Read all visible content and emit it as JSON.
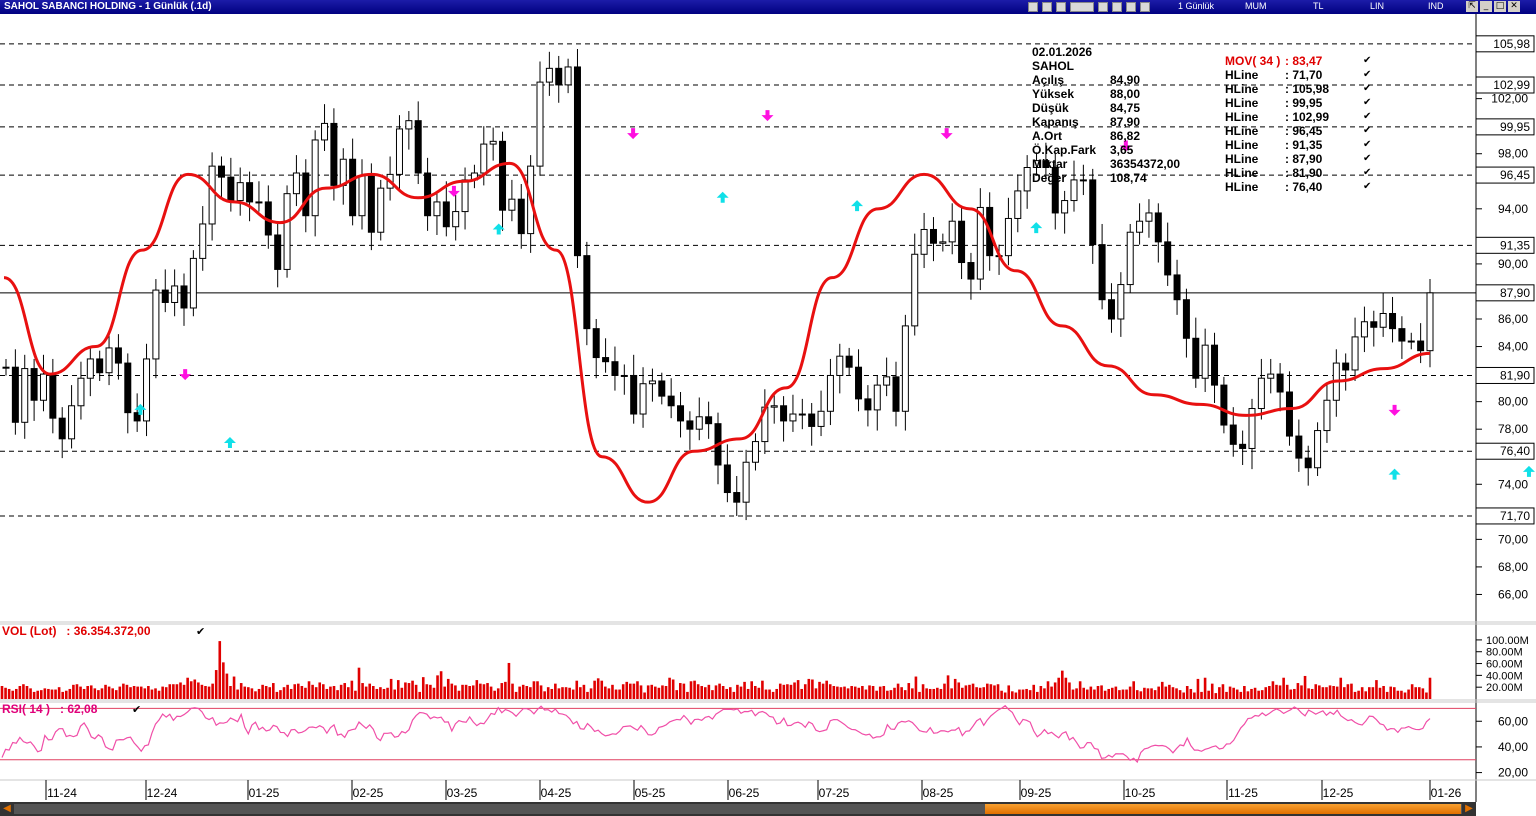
{
  "window": {
    "title": "SAHOL SABANCI HOLDING - 1 Günlük (.1d)",
    "toolbar": [
      "1 Günlük",
      "MUM",
      "TL",
      "LIN",
      "IND"
    ]
  },
  "info": {
    "date": "02.01.2026",
    "symbol": "SAHOL",
    "rows": [
      {
        "label": "Açılış",
        "value": "84,90"
      },
      {
        "label": "Yüksek",
        "value": "88,00"
      },
      {
        "label": "Düşük",
        "value": "84,75"
      },
      {
        "label": "Kapanış",
        "value": "87,90"
      },
      {
        "label": "A.Ort",
        "value": "86,82"
      },
      {
        "label": "Ö.Kap.Fark",
        "value": "3,65"
      },
      {
        "label": "Miktar",
        "value": "36354372,00"
      },
      {
        "label": "Değer",
        "value": "108,74"
      }
    ]
  },
  "indicators": [
    {
      "name": "MOV( 34 )",
      "value": ": 83,47"
    },
    {
      "name": "HLine",
      "value": ": 71,70"
    },
    {
      "name": "HLine",
      "value": ": 105,98"
    },
    {
      "name": "HLine",
      "value": ": 99,95"
    },
    {
      "name": "HLine",
      "value": ": 102,99"
    },
    {
      "name": "HLine",
      "value": ": 96,45"
    },
    {
      "name": "HLine",
      "value": ": 91,35"
    },
    {
      "name": "HLine",
      "value": ": 87,90"
    },
    {
      "name": "HLine",
      "value": ": 81,90"
    },
    {
      "name": "HLine",
      "value": ": 76,40"
    }
  ],
  "vol_label": "VOL (Lot)   : 36.354.372,00",
  "rsi_label": "RSI( 14 )   : 62,08",
  "chart_data": [
    {
      "type": "candlestick",
      "ylim": [
        64,
        108
      ],
      "price_ticks": [
        "66,00",
        "68,00",
        "70,00",
        "72,00",
        "74,00",
        "76,00",
        "78,00",
        "80,00",
        "82,00",
        "84,00",
        "86,00",
        "88,00",
        "90,00",
        "92,00",
        "94,00",
        "96,00",
        "98,00",
        "100,00",
        "102,00"
      ],
      "hlines": [
        {
          "value": 105.98,
          "label": "105,98"
        },
        {
          "value": 102.99,
          "label": "102,99"
        },
        {
          "value": 99.95,
          "label": "99,95"
        },
        {
          "value": 96.45,
          "label": "96,45"
        },
        {
          "value": 91.35,
          "label": "91,35"
        },
        {
          "value": 87.9,
          "label": "87,90"
        },
        {
          "value": 81.9,
          "label": "81,90"
        },
        {
          "value": 76.4,
          "label": "76,40"
        },
        {
          "value": 71.7,
          "label": "71,70"
        }
      ],
      "x_labels": [
        "11-24",
        "12-24",
        "01-25",
        "02-25",
        "03-25",
        "04-25",
        "05-25",
        "06-25",
        "07-25",
        "08-25",
        "09-25",
        "10-25",
        "11-25",
        "12-25",
        "01-26"
      ],
      "closes": [
        82.5,
        78.5,
        82.4,
        80.1,
        82,
        78.8,
        77.3,
        79.7,
        81.7,
        83.1,
        82.1,
        83.9,
        82.8,
        79.2,
        78.6,
        83.1,
        88.1,
        87.2,
        88.4,
        86.8,
        90.4,
        92.9,
        97.1,
        96.3,
        94.6,
        95.9,
        94.5,
        94.5,
        92.1,
        89.6,
        95.1,
        96.6,
        93.5,
        99,
        100.2,
        95.7,
        97.6,
        93.5,
        96.4,
        92.3,
        95.5,
        96.5,
        99.8,
        100.4,
        96.6,
        93.5,
        94.5,
        92.7,
        93.8,
        96.1,
        96.6,
        98.7,
        98.9,
        93.9,
        94.7,
        92.2,
        97.1,
        103.2,
        104.2,
        103,
        104.3,
        90.6,
        85.3,
        83.2,
        82.9,
        81.9,
        81.9,
        79.1,
        81.3,
        81.5,
        80.4,
        79.7,
        78.6,
        78,
        78.9,
        78.4,
        75.4,
        73.4,
        72.7,
        75.6,
        77.1,
        79.6,
        79.7,
        78.6,
        79.1,
        79.1,
        78.2,
        79.3,
        81.9,
        83.3,
        82.5,
        80.2,
        79.4,
        81.2,
        81.8,
        79.3,
        85.5,
        90.7,
        92.5,
        91.5,
        91.6,
        93.1,
        90.1,
        88.9,
        94.1,
        90.6,
        90.6,
        93.3,
        95.3,
        97,
        97.5,
        97,
        93.7,
        94.6,
        96.1,
        96.1,
        91.4,
        87.4,
        86,
        88.5,
        92.3,
        93.1,
        93.7,
        91.6,
        89.2,
        87.4,
        84.6,
        81.7,
        84.1,
        81.2,
        78.3,
        76.9,
        76.6,
        79.5,
        81.7,
        82,
        80.7,
        77.5,
        75.9,
        75.2,
        77.9,
        80.1,
        82.8,
        82.3,
        84.7,
        85.8,
        85.4,
        86.4,
        85.3,
        84.4,
        84.4,
        83.7,
        87.9
      ],
      "mov34": [
        89,
        82,
        84,
        91,
        96.5,
        94.5,
        93,
        95.5,
        96.5,
        94.8,
        96,
        97.3,
        91,
        76,
        72.7,
        76.4,
        77.3,
        81,
        89,
        94,
        96.5,
        94,
        89.5,
        85.5,
        82.6,
        80.5,
        79.8,
        79,
        79.5,
        81.5,
        82.4,
        83.5
      ],
      "markers": [
        {
          "dir": "up",
          "i": 3,
          "v": 79.4
        },
        {
          "dir": "down",
          "i": 4,
          "v": 82
        },
        {
          "dir": "up",
          "i": 5,
          "v": 77
        },
        {
          "dir": "down",
          "i": 10,
          "v": 95.3
        },
        {
          "dir": "up",
          "i": 11,
          "v": 92.5
        },
        {
          "dir": "down",
          "i": 14,
          "v": 99.5
        },
        {
          "dir": "up",
          "i": 16,
          "v": 94.8
        },
        {
          "dir": "down",
          "i": 17,
          "v": 100.8
        },
        {
          "dir": "up",
          "i": 19,
          "v": 94.2
        },
        {
          "dir": "down",
          "i": 21,
          "v": 99.5
        },
        {
          "dir": "up",
          "i": 23,
          "v": 92.6
        },
        {
          "dir": "down",
          "i": 25,
          "v": 98.6
        },
        {
          "dir": "up",
          "i": 31,
          "v": 74.7
        },
        {
          "dir": "down",
          "i": 31,
          "v": 79.4
        },
        {
          "dir": "up",
          "i": 34,
          "v": 74.9
        },
        {
          "dir": "down",
          "i": 36,
          "v": 79.4
        },
        {
          "dir": "up",
          "i": 37,
          "v": 76.2
        },
        {
          "dir": "down",
          "i": 39,
          "v": 81.4
        },
        {
          "dir": "up",
          "i": 40,
          "v": 79.3
        },
        {
          "dir": "down",
          "i": 44,
          "v": 92.4
        },
        {
          "dir": "up",
          "i": 45,
          "v": 91.7
        },
        {
          "dir": "down",
          "i": 49,
          "v": 97.9
        },
        {
          "dir": "up",
          "i": 50,
          "v": 96.4
        },
        {
          "dir": "down",
          "i": 51,
          "v": 97.3
        },
        {
          "dir": "up",
          "i": 54,
          "v": 84.3
        },
        {
          "dir": "down",
          "i": 56,
          "v": 92.4
        },
        {
          "dir": "down",
          "i": 63,
          "v": 84.2
        },
        {
          "dir": "up",
          "i": 63,
          "v": 80.4
        },
        {
          "dir": "up",
          "i": 66,
          "v": 77.3
        },
        {
          "dir": "down",
          "i": 71,
          "v": 87.9
        },
        {
          "dir": "up",
          "i": 73,
          "v": 84.2
        }
      ]
    },
    {
      "type": "bar",
      "title": "VOL (Lot)",
      "ylim": [
        0,
        110
      ],
      "y_ticks": [
        "20.00M",
        "40.00M",
        "60.00M",
        "80.00M",
        "100.00M"
      ],
      "values": [
        22,
        19,
        17,
        14,
        17,
        22,
        25,
        22,
        18,
        12,
        14,
        15,
        18,
        17,
        16,
        16,
        20,
        12,
        14,
        17,
        24,
        25,
        21,
        17,
        22,
        23,
        18,
        15,
        18,
        24,
        21,
        18,
        15,
        21,
        26,
        24,
        20,
        22,
        21,
        21,
        18,
        22,
        16,
        18,
        14,
        21,
        20,
        25,
        25,
        25,
        28,
        24,
        36,
        30,
        33,
        28,
        24,
        22,
        21,
        26,
        49,
        98,
        62,
        43,
        22,
        38,
        16,
        27,
        21,
        20,
        18,
        13,
        17,
        24,
        22,
        20,
        27,
        12,
        15,
        20,
        24,
        17,
        25,
        26,
        22,
        19,
        30,
        24,
        20,
        28,
        25,
        17,
        21,
        22,
        15,
        24,
        27,
        20,
        31,
        14,
        53,
        27,
        21,
        26,
        22,
        17,
        20,
        17,
        19,
        34,
        16,
        32,
        19,
        28,
        27,
        31,
        24,
        12,
        37,
        25,
        24,
        19,
        40,
        47,
        21,
        34,
        26,
        23,
        14,
        24,
        24,
        22,
        23,
        32,
        26,
        25,
        27,
        21,
        14,
        18,
        27,
        29,
        61,
        26,
        12,
        21,
        24,
        22,
        20,
        30,
        30,
        23,
        13,
        20,
        17,
        26,
        18,
        20,
        20,
        19,
        16,
        31,
        20,
        24,
        12,
        18,
        31,
        35,
        31,
        21,
        18,
        24,
        16,
        16,
        25,
        29,
        26,
        26,
        30,
        23,
        11,
        23,
        24,
        21,
        19,
        23,
        22,
        36,
        33,
        15,
        27,
        26,
        12,
        30,
        31,
        25,
        22,
        20,
        24,
        15,
        23,
        26,
        22,
        17,
        20,
        12,
        24,
        21,
        29,
        17,
        30,
        22,
        19,
        31,
        16,
        16,
        12,
        17,
        26,
        24,
        25,
        24,
        28,
        32,
        17,
        25,
        34,
        33,
        18,
        29,
        26,
        31,
        25,
        22,
        21,
        20,
        21,
        18,
        22,
        21,
        19,
        22,
        16,
        23,
        22,
        14,
        21,
        22,
        14,
        15,
        19,
        26,
        20,
        15,
        27,
        18,
        38,
        12,
        25,
        18,
        17,
        17,
        19,
        17,
        26,
        40,
        18,
        34,
        28,
        19,
        23,
        24,
        26,
        20,
        19,
        20,
        26,
        25,
        23,
        25,
        14,
        11,
        23,
        13,
        11,
        16,
        16,
        17,
        15,
        24,
        12,
        22,
        18,
        30,
        21,
        28,
        36,
        48,
        36,
        28,
        16,
        18,
        30,
        19,
        16,
        21,
        16,
        22,
        23,
        14,
        17,
        19,
        21,
        15,
        16,
        16,
        21,
        30,
        15,
        13,
        19,
        18,
        18,
        15,
        21,
        29,
        21,
        24,
        20,
        18,
        15,
        11,
        22,
        17,
        11,
        34,
        12,
        36,
        14,
        26,
        10,
        20,
        25,
        12,
        21,
        19,
        16,
        12,
        22,
        13,
        17,
        19,
        14,
        15,
        20,
        22,
        30,
        24,
        23,
        36,
        24,
        16,
        17,
        27,
        23,
        39,
        18,
        17,
        25,
        23,
        20,
        20,
        23,
        22,
        21,
        36,
        20,
        25,
        26,
        12,
        14,
        20,
        13,
        20,
        20,
        32,
        19,
        22,
        12,
        21,
        20,
        14,
        14,
        11,
        16,
        25,
        20,
        20,
        18,
        11,
        36
      ]
    },
    {
      "type": "line",
      "title": "RSI( 14 )",
      "ylim": [
        15,
        75
      ],
      "y_ticks": [
        "20,00",
        "40,00",
        "60,00"
      ],
      "bands": [
        30,
        70
      ],
      "values": [
        31.7,
        38.1,
        37.5,
        43.4,
        42.9,
        47.4,
        44.1,
        43,
        43.9,
        40.5,
        36.2,
        37.3,
        48.9,
        45.5,
        45.7,
        51.7,
        54.2,
        54.2,
        48.1,
        49,
        48,
        49,
        56.2,
        58.7,
        54.2,
        47.8,
        46.4,
        49.4,
        47.4,
        40.1,
        38.5,
        37.6,
        45.3,
        45.7,
        45.6,
        47.1,
        47.6,
        43.1,
        40.1,
        36.6,
        40.9,
        41.6,
        50.8,
        57.8,
        61.1,
        65.6,
        63.2,
        65.4,
        60.7,
        63.9,
        63.7,
        65.2,
        67.3,
        70.1,
        70.5,
        70,
        67.4,
        62.7,
        61.3,
        62.8,
        56.9,
        58.7,
        58.5,
        59.3,
        62.5,
        61.2,
        59.7,
        65.3,
        55.3,
        50.2,
        57,
        59.3,
        53.5,
        55.3,
        52.4,
        53.2,
        56.8,
        55.8,
        51.3,
        51.2,
        48.1,
        53.3,
        53.6,
        50.9,
        51.4,
        52.8,
        55.3,
        55.5,
        54.9,
        56.5,
        55.1,
        50.7,
        55,
        57.2,
        49.2,
        50,
        47.4,
        52.5,
        53.4,
        54,
        59.4,
        56.8,
        54.5,
        57.2,
        53.8,
        47.1,
        44.9,
        50.6,
        50.6,
        51,
        47.6,
        48.2,
        52,
        50.9,
        53.4,
        60.9,
        64.4,
        66.8,
        66.5,
        65.5,
        62,
        63.4,
        62.6,
        63.2,
        59.3,
        59.5,
        52.4,
        58,
        60.5,
        59.6,
        59.2,
        63.4,
        59.4,
        56.6,
        58.5,
        58.1,
        61.8,
        66.1,
        65.3,
        70.6,
        66.6,
        69.1,
        68.1,
        66.5,
        63.9,
        66.9,
        69.8,
        69.8,
        68.6,
        65.8,
        69.2,
        71.7,
        68.8,
        69,
        67.1,
        69.5,
        66,
        65.6,
        64.7,
        62.1,
        58,
        59.8,
        54.2,
        53.8,
        58.2,
        55.6,
        52.1,
        53,
        50.3,
        48.6,
        49.2,
        50.2,
        49.9,
        52.2,
        55.8,
        56.1,
        56.4,
        54.6,
        53,
        56.6,
        53.6,
        49.5,
        49.3,
        50.6,
        55.2,
        55.9,
        57.1,
        59.5,
        60.5,
        61.4,
        61.1,
        64.5,
        61.6,
        57.7,
        61.3,
        61.6,
        60.7,
        63.1,
        63.8,
        61.7,
        65.6,
        67.3,
        69.2,
        69.2,
        69.3,
        68.9,
        69.6,
        66.2,
        67.6,
        67.5,
        68.5,
        64.3,
        66.9,
        67.6,
        66.3,
        63.7,
        63.2,
        57.9,
        58.7,
        62.4,
        56.6,
        56.8,
        58.6,
        59.3,
        58,
        55.3,
        59.5,
        58,
        53,
        51.9,
        52.6,
        53.4,
        60.4,
        61.3,
        61.2,
        59.4,
        57.5,
        55.1,
        53.6,
        53.4,
        51.8,
        50.1,
        49.3,
        49.9,
        46.8,
        47.8,
        47.9,
        49.5,
        57.3,
        53.9,
        53.7,
        58.5,
        59.9,
        59.4,
        60.4,
        59,
        56,
        52.7,
        51.9,
        51.5,
        55,
        50.7,
        51,
        52.6,
        52.5,
        51.7,
        53.1,
        53.1,
        55.1,
        48.8,
        52.2,
        52.5,
        56.2,
        60.3,
        62.1,
        56.8,
        61,
        64.2,
        66.5,
        68.7,
        70.1,
        72.1,
        69.1,
        66.9,
        61.5,
        57.3,
        61.4,
        60.7,
        59.3,
        52.4,
        47.9,
        50.1,
        53.5,
        50.3,
        51.4,
        49.1,
        47.1,
        50.6,
        51.8,
        45.5,
        47.4,
        43.5,
        39.1,
        39.5,
        43.4,
        43.3,
        38.8,
        38.2,
        31.1,
        31.5,
        33.5,
        32,
        34.7,
        34.6,
        34.7,
        32.7,
        29.6,
        31.2,
        28.2,
        35.7,
        38.4,
        39.1,
        40.6,
        41.3,
        40.9,
        41.1,
        40.4,
        38.4,
        35.4,
        38.7,
        41.6,
        40.9,
        46.9,
        41,
        37.5,
        37.5,
        36.6,
        38.1,
        38.9,
        40.1,
        40.8,
        38.4,
        39,
        42.3,
        42.4,
        45.2,
        50,
        54.8,
        57.7,
        62.1,
        62.5,
        64.5,
        64,
        66.5,
        64.4,
        66.1,
        68.2,
        69.6,
        68.3,
        66.1,
        67.6,
        69,
        71.1,
        69.5,
        66.5,
        64.2,
        68.7,
        67.2,
        65.5,
        66.9,
        68.1,
        64.7,
        67.1,
        65.4,
        68.6,
        64.3,
        62.3,
        60.5,
        61.2,
        59.1,
        57.7,
        57.1,
        60.1,
        64,
        63.7,
        61.2,
        58,
        57.2,
        53.1,
        54.3,
        54.1,
        51.3,
        54.7,
        54.8,
        55.9,
        54.5,
        53.6,
        53.5,
        54.4,
        59.6,
        62.1
      ]
    }
  ]
}
